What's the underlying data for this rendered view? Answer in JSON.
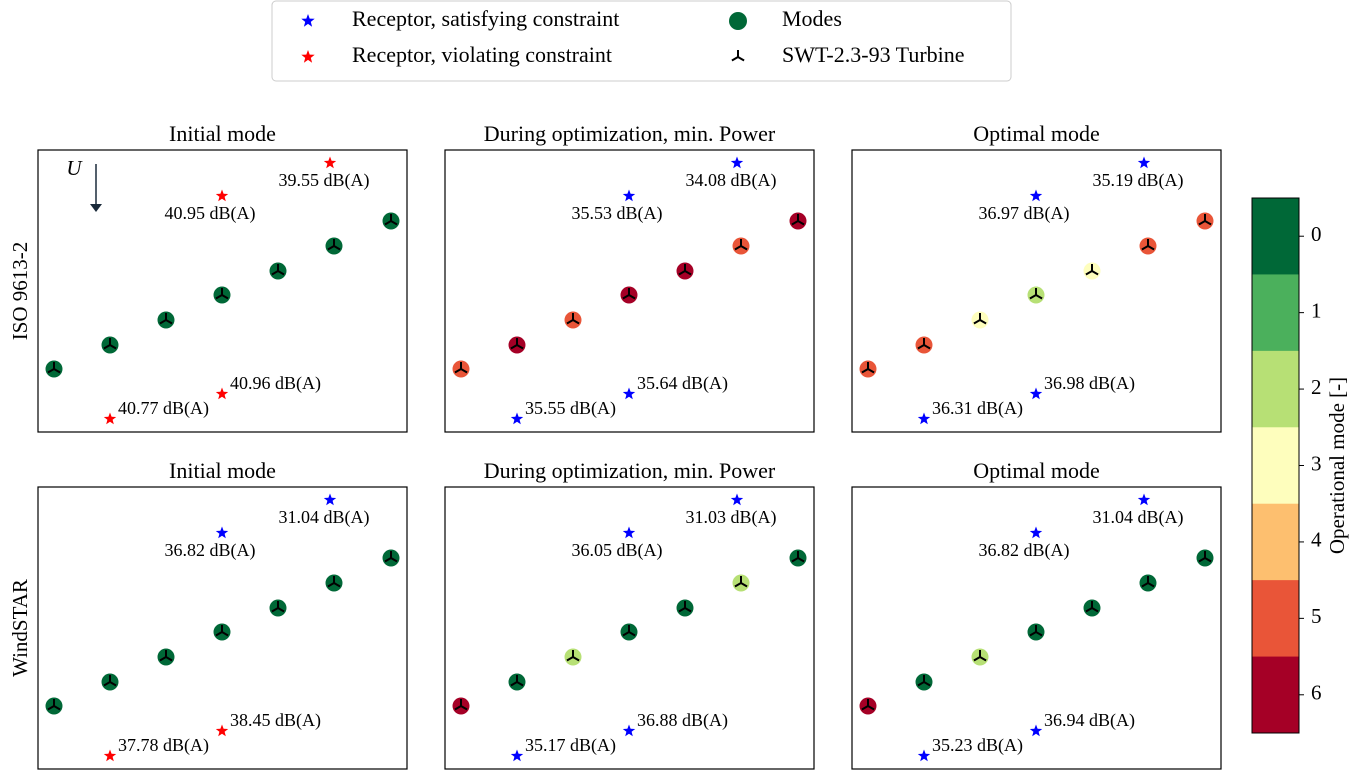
{
  "legend": {
    "entries": [
      {
        "label": "Receptor, satisfying constraint",
        "marker": "star",
        "color": "#0000ff"
      },
      {
        "label": "Receptor, violating constraint",
        "marker": "star",
        "color": "#ff0000"
      },
      {
        "label": "Modes",
        "marker": "circle",
        "color": "#006837"
      },
      {
        "label": "SWT-2.3-93 Turbine",
        "marker": "turbine",
        "color": "#000000"
      }
    ]
  },
  "colorbar": {
    "label": "Operational mode [-]",
    "ticks": [
      0,
      1,
      2,
      3,
      4,
      5,
      6
    ],
    "colors": [
      "#006837",
      "#4bb05c",
      "#b7e075",
      "#fefebd",
      "#fdbf6f",
      "#e95538",
      "#a50026"
    ]
  },
  "rows": [
    {
      "label": "ISO 9613-2",
      "panels": [
        {
          "title": "Initial mode",
          "wind_label": "U",
          "modes": [
            0,
            0,
            0,
            0,
            0,
            0,
            0
          ],
          "receptors": [
            {
              "label": "39.55 dB(A)",
              "violating": true
            },
            {
              "label": "40.95 dB(A)",
              "violating": true
            },
            {
              "label": "40.96 dB(A)",
              "violating": true
            },
            {
              "label": "40.77 dB(A)",
              "violating": true
            }
          ]
        },
        {
          "title": "During optimization, min. Power",
          "modes": [
            5,
            6,
            5,
            6,
            6,
            5,
            6
          ],
          "receptors": [
            {
              "label": "34.08 dB(A)",
              "violating": false
            },
            {
              "label": "35.53 dB(A)",
              "violating": false
            },
            {
              "label": "35.64 dB(A)",
              "violating": false
            },
            {
              "label": "35.55 dB(A)",
              "violating": false
            }
          ]
        },
        {
          "title": "Optimal mode",
          "modes": [
            5,
            5,
            3,
            2,
            3,
            5,
            5
          ],
          "receptors": [
            {
              "label": "35.19 dB(A)",
              "violating": false
            },
            {
              "label": "36.97 dB(A)",
              "violating": false
            },
            {
              "label": "36.98 dB(A)",
              "violating": false
            },
            {
              "label": "36.31 dB(A)",
              "violating": false
            }
          ]
        }
      ]
    },
    {
      "label": "WindSTAR",
      "panels": [
        {
          "title": "Initial mode",
          "modes": [
            0,
            0,
            0,
            0,
            0,
            0,
            0
          ],
          "receptors": [
            {
              "label": "31.04 dB(A)",
              "violating": false
            },
            {
              "label": "36.82 dB(A)",
              "violating": false
            },
            {
              "label": "38.45 dB(A)",
              "violating": true
            },
            {
              "label": "37.78 dB(A)",
              "violating": true
            }
          ]
        },
        {
          "title": "During optimization, min. Power",
          "modes": [
            6,
            0,
            2,
            0,
            0,
            2,
            0
          ],
          "receptors": [
            {
              "label": "31.03 dB(A)",
              "violating": false
            },
            {
              "label": "36.05 dB(A)",
              "violating": false
            },
            {
              "label": "36.88 dB(A)",
              "violating": false
            },
            {
              "label": "35.17 dB(A)",
              "violating": false
            }
          ]
        },
        {
          "title": "Optimal mode",
          "modes": [
            6,
            0,
            2,
            0,
            0,
            0,
            0
          ],
          "receptors": [
            {
              "label": "31.04 dB(A)",
              "violating": false
            },
            {
              "label": "36.82 dB(A)",
              "violating": false
            },
            {
              "label": "36.94 dB(A)",
              "violating": false
            },
            {
              "label": "35.23 dB(A)",
              "violating": false
            }
          ]
        }
      ]
    }
  ]
}
